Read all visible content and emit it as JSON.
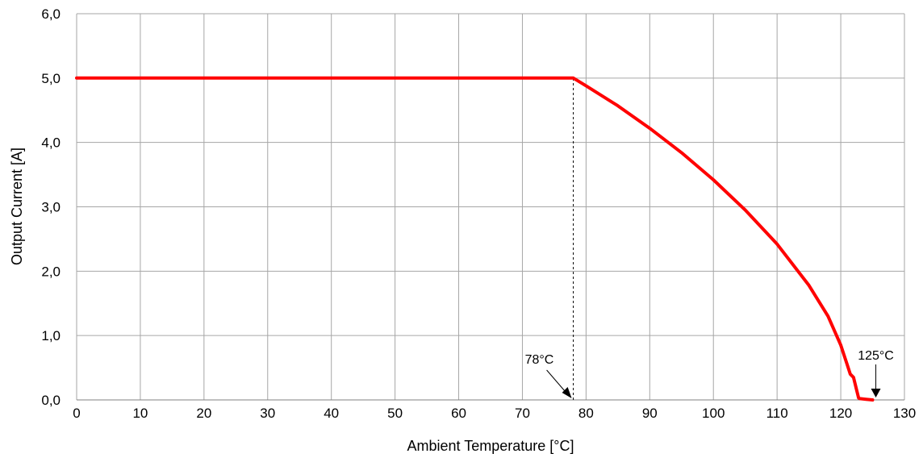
{
  "chart_data": {
    "type": "line",
    "title": "",
    "xlabel": "Ambient Temperature [°C]",
    "ylabel": "Output Current  [A]",
    "xlim": [
      0,
      130
    ],
    "ylim": [
      0,
      6
    ],
    "x_ticks": [
      0,
      10,
      20,
      30,
      40,
      50,
      60,
      70,
      80,
      90,
      100,
      110,
      120,
      130
    ],
    "x_tick_labels": [
      "0",
      "10",
      "20",
      "30",
      "40",
      "50",
      "60",
      "70",
      "80",
      "90",
      "100",
      "110",
      "120",
      "130"
    ],
    "y_ticks": [
      0,
      1,
      2,
      3,
      4,
      5,
      6
    ],
    "y_tick_labels": [
      "0,0",
      "1,0",
      "2,0",
      "3,0",
      "4,0",
      "5,0",
      "6,0"
    ],
    "grid": true,
    "colors": {
      "series": "#ff0000",
      "grid": "#a6a6a6",
      "guide": "#000000"
    },
    "series": [
      {
        "x": [
          0,
          78,
          80,
          85,
          90,
          95,
          100,
          105,
          110,
          115,
          118,
          120,
          121,
          121.5,
          122,
          122.5,
          122.8,
          123,
          124,
          125
        ],
        "y": [
          5.0,
          5.0,
          4.88,
          4.57,
          4.22,
          3.84,
          3.42,
          2.95,
          2.42,
          1.78,
          1.3,
          0.85,
          0.55,
          0.4,
          0.35,
          0.15,
          0.03,
          0.02,
          0.01,
          0.0
        ]
      }
    ],
    "guides": [
      {
        "type": "vline",
        "x": 78,
        "y_from": 0,
        "y_to": 5.0,
        "style": "dashed"
      }
    ],
    "annotations": [
      {
        "text": "78°C",
        "x": 78,
        "y": 0.0
      },
      {
        "text": "125°C",
        "x": 125,
        "y": 0.0
      }
    ]
  }
}
